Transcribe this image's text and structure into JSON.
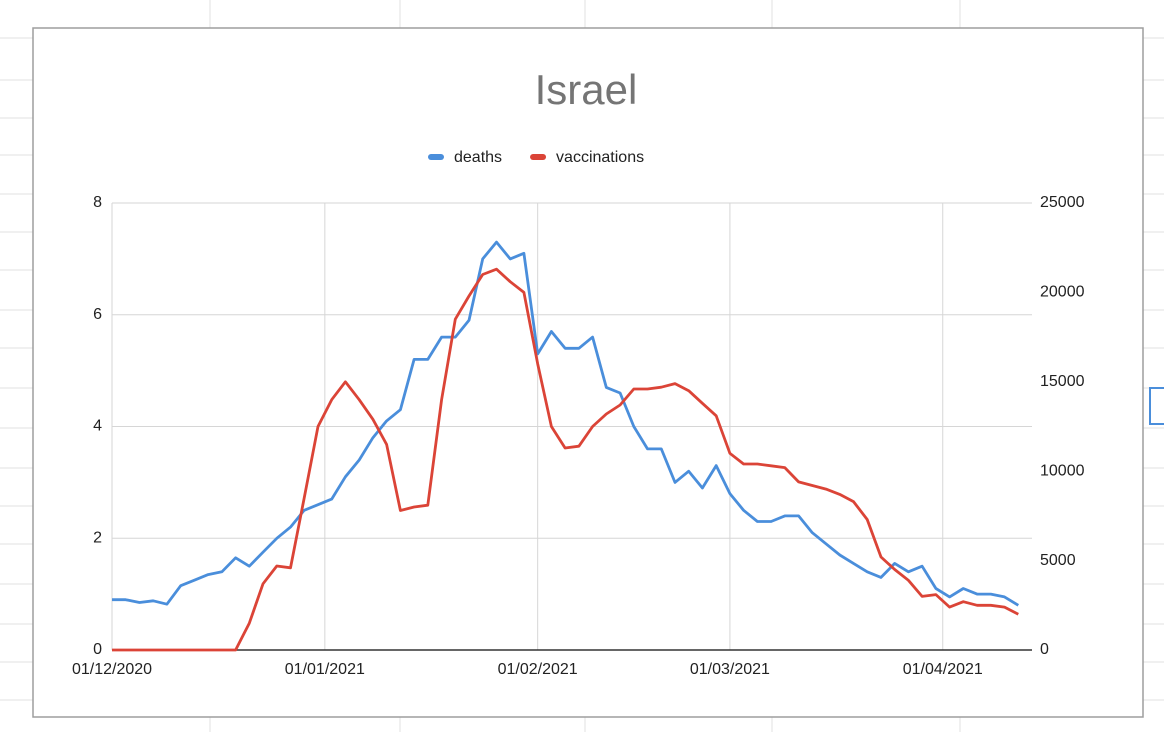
{
  "chart_data": {
    "type": "line",
    "title": "Israel",
    "x": [
      "01/12/2020",
      "03/12/2020",
      "05/12/2020",
      "07/12/2020",
      "09/12/2020",
      "11/12/2020",
      "13/12/2020",
      "15/12/2020",
      "17/12/2020",
      "19/12/2020",
      "21/12/2020",
      "23/12/2020",
      "25/12/2020",
      "27/12/2020",
      "29/12/2020",
      "31/12/2020",
      "02/01/2021",
      "04/01/2021",
      "06/01/2021",
      "08/01/2021",
      "10/01/2021",
      "12/01/2021",
      "14/01/2021",
      "16/01/2021",
      "18/01/2021",
      "20/01/2021",
      "22/01/2021",
      "24/01/2021",
      "26/01/2021",
      "28/01/2021",
      "30/01/2021",
      "01/02/2021",
      "03/02/2021",
      "05/02/2021",
      "07/02/2021",
      "09/02/2021",
      "11/02/2021",
      "13/02/2021",
      "15/02/2021",
      "17/02/2021",
      "19/02/2021",
      "21/02/2021",
      "23/02/2021",
      "25/02/2021",
      "27/02/2021",
      "01/03/2021",
      "03/03/2021",
      "05/03/2021",
      "07/03/2021",
      "09/03/2021",
      "11/03/2021",
      "13/03/2021",
      "15/03/2021",
      "17/03/2021",
      "19/03/2021",
      "21/03/2021",
      "23/03/2021",
      "25/03/2021",
      "27/03/2021",
      "29/03/2021",
      "31/03/2021",
      "02/04/2021",
      "04/04/2021",
      "06/04/2021",
      "08/04/2021",
      "10/04/2021",
      "12/04/2021"
    ],
    "series": [
      {
        "name": "deaths",
        "color": "#4a8edb",
        "values": [
          0.9,
          0.9,
          0.85,
          0.88,
          0.82,
          1.15,
          1.25,
          1.35,
          1.4,
          1.65,
          1.5,
          1.75,
          2.0,
          2.2,
          2.5,
          2.6,
          2.7,
          3.1,
          3.4,
          3.8,
          4.1,
          4.3,
          5.2,
          5.2,
          5.6,
          5.6,
          5.9,
          7.0,
          7.3,
          7.0,
          7.1,
          5.3,
          5.7,
          5.4,
          5.4,
          5.6,
          4.7,
          4.6,
          4.0,
          3.6,
          3.6,
          3.0,
          3.2,
          2.9,
          3.3,
          2.8,
          2.5,
          2.3,
          2.3,
          2.4,
          2.4,
          2.1,
          1.9,
          1.7,
          1.55,
          1.4,
          1.3,
          1.55,
          1.4,
          1.5,
          1.1,
          0.95,
          1.1,
          1.0,
          1.0,
          0.95,
          0.8
        ]
      },
      {
        "name": "vaccinations",
        "color": "#db4437",
        "axis": "y2",
        "values": [
          0,
          0,
          0,
          0,
          0,
          0,
          0,
          0,
          0,
          0,
          1500,
          3700,
          4700,
          4600,
          8500,
          12500,
          14000,
          15000,
          14000,
          12900,
          11500,
          7800,
          8000,
          8100,
          14000,
          18500,
          19800,
          21000,
          21300,
          20600,
          20000,
          16000,
          12500,
          11300,
          11400,
          12500,
          13200,
          13700,
          14600,
          14600,
          14700,
          14900,
          14500,
          13800,
          13100,
          11000,
          10400,
          10400,
          10300,
          10200,
          9400,
          9200,
          9000,
          8700,
          8300,
          7300,
          5200,
          4500,
          3900,
          3000,
          3100,
          2400,
          2700,
          2500,
          2500,
          2400,
          2000
        ]
      }
    ],
    "xlim": [
      "01/12/2020",
      "14/04/2021"
    ],
    "xticks": [
      "01/12/2020",
      "01/01/2021",
      "01/02/2021",
      "01/03/2021",
      "01/04/2021"
    ],
    "ylim": [
      0,
      8
    ],
    "yticks": [
      0,
      2,
      4,
      6,
      8
    ],
    "y2lim": [
      0,
      25000
    ],
    "y2ticks": [
      0,
      5000,
      10000,
      15000,
      20000,
      25000
    ],
    "grid": true,
    "legend": "top"
  }
}
